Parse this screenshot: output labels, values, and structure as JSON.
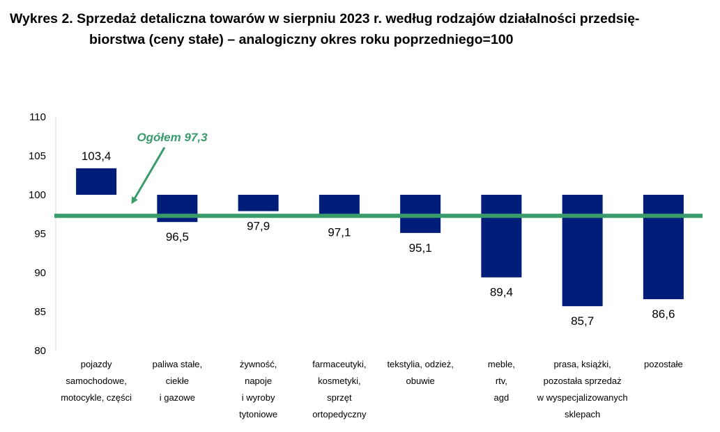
{
  "title": {
    "line1": "Wykres 2. Sprzedaż detaliczna towarów w sierpniu 2023 r. według rodzajów działalności przedsię-",
    "line2": "biorstwa (ceny stałe) – analogiczny okres roku poprzedniego=100"
  },
  "chart_data": {
    "type": "bar",
    "baseline": 100,
    "ylim": [
      80,
      110
    ],
    "yticks": [
      "110",
      "105",
      "100",
      "95",
      "90",
      "85",
      "80"
    ],
    "categories": [
      [
        "pojazdy",
        "samochodowe,",
        "motocykle, części"
      ],
      [
        "paliwa stałe,",
        "ciekłe",
        "i gazowe"
      ],
      [
        "żywność,",
        "napoje",
        "i wyroby",
        "tytoniowe"
      ],
      [
        "farmaceutyki,",
        "kosmetyki,",
        "sprzęt",
        "ortopedyczny"
      ],
      [
        "tekstylia, odzież,",
        "obuwie"
      ],
      [
        "meble,",
        "rtv,",
        "agd"
      ],
      [
        "prasa, książki,",
        "pozostała sprzedaż",
        "w wyspecjalizowanych",
        "sklepach"
      ],
      [
        "pozostałe"
      ]
    ],
    "values": [
      103.4,
      96.5,
      97.9,
      97.1,
      95.1,
      89.4,
      85.7,
      86.6
    ],
    "data_labels": [
      "103,4",
      "96,5",
      "97,9",
      "97,1",
      "95,1",
      "89,4",
      "85,7",
      "86,6"
    ],
    "reference_line": {
      "label": "Ogółem 97,3",
      "value": 97.3
    },
    "colors": {
      "bar": "#001E79",
      "reference": "#3A9B6A",
      "grid": "#d9d9d9"
    },
    "grid": false
  }
}
